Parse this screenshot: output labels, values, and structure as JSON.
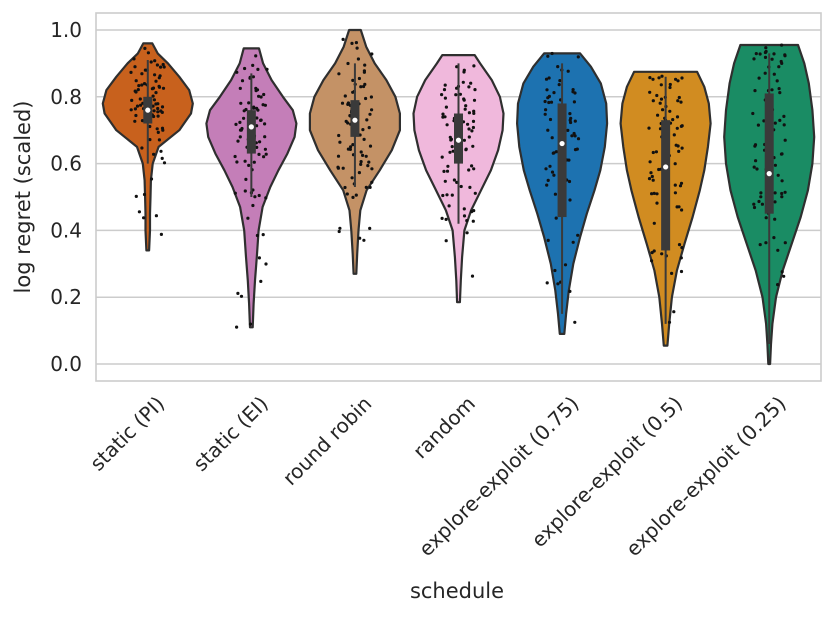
{
  "chart_data": {
    "type": "violin",
    "title": "",
    "xlabel": "schedule",
    "ylabel": "log regret (scaled)",
    "ylim": [
      -0.05,
      1.05
    ],
    "yticks": [
      "0.0",
      "0.2",
      "0.4",
      "0.6",
      "0.8",
      "1.0"
    ],
    "grid": "horizontal",
    "overlay": "jittered individual points (black dots) with inner box-and-whisker",
    "categories": [
      "static (PI)",
      "static (EI)",
      "round robin",
      "random",
      "explore-exploit (0.75)",
      "explore-exploit (0.5)",
      "explore-exploit (0.25)"
    ],
    "series": [
      {
        "category": "static (PI)",
        "color": "#c8611d",
        "min": 0.34,
        "q1": 0.72,
        "median": 0.76,
        "q3": 0.8,
        "max": 0.96,
        "whisker_low": 0.6,
        "whisker_high": 0.91,
        "density": [
          [
            0.34,
            0.03
          ],
          [
            0.4,
            0.05
          ],
          [
            0.45,
            0.05
          ],
          [
            0.5,
            0.06
          ],
          [
            0.55,
            0.07
          ],
          [
            0.6,
            0.11
          ],
          [
            0.65,
            0.24
          ],
          [
            0.7,
            0.7
          ],
          [
            0.75,
            0.96
          ],
          [
            0.78,
            1.0
          ],
          [
            0.82,
            0.92
          ],
          [
            0.86,
            0.7
          ],
          [
            0.9,
            0.45
          ],
          [
            0.93,
            0.22
          ],
          [
            0.96,
            0.1
          ]
        ]
      },
      {
        "category": "static (EI)",
        "color": "#c47eb8",
        "min": 0.11,
        "q1": 0.63,
        "median": 0.71,
        "q3": 0.76,
        "max": 0.945,
        "whisker_low": 0.5,
        "whisker_high": 0.87,
        "density": [
          [
            0.11,
            0.03
          ],
          [
            0.18,
            0.05
          ],
          [
            0.25,
            0.08
          ],
          [
            0.32,
            0.12
          ],
          [
            0.4,
            0.16
          ],
          [
            0.47,
            0.25
          ],
          [
            0.53,
            0.42
          ],
          [
            0.58,
            0.6
          ],
          [
            0.63,
            0.8
          ],
          [
            0.68,
            0.96
          ],
          [
            0.72,
            1.0
          ],
          [
            0.76,
            0.92
          ],
          [
            0.8,
            0.7
          ],
          [
            0.85,
            0.45
          ],
          [
            0.9,
            0.26
          ],
          [
            0.945,
            0.17
          ]
        ]
      },
      {
        "category": "round robin",
        "color": "#c49266",
        "min": 0.27,
        "q1": 0.68,
        "median": 0.73,
        "q3": 0.79,
        "max": 1.0,
        "whisker_low": 0.53,
        "whisker_high": 0.9,
        "density": [
          [
            0.27,
            0.03
          ],
          [
            0.33,
            0.05
          ],
          [
            0.4,
            0.08
          ],
          [
            0.46,
            0.12
          ],
          [
            0.52,
            0.26
          ],
          [
            0.58,
            0.55
          ],
          [
            0.64,
            0.82
          ],
          [
            0.7,
            1.0
          ],
          [
            0.75,
            1.0
          ],
          [
            0.8,
            0.9
          ],
          [
            0.85,
            0.7
          ],
          [
            0.9,
            0.44
          ],
          [
            0.95,
            0.25
          ],
          [
            1.0,
            0.13
          ]
        ]
      },
      {
        "category": "random",
        "color": "#f0b8dc",
        "min": 0.185,
        "q1": 0.6,
        "median": 0.67,
        "q3": 0.75,
        "max": 0.925,
        "whisker_low": 0.42,
        "whisker_high": 0.9,
        "density": [
          [
            0.185,
            0.03
          ],
          [
            0.25,
            0.05
          ],
          [
            0.32,
            0.08
          ],
          [
            0.4,
            0.13
          ],
          [
            0.46,
            0.28
          ],
          [
            0.52,
            0.5
          ],
          [
            0.58,
            0.72
          ],
          [
            0.64,
            0.88
          ],
          [
            0.7,
            0.98
          ],
          [
            0.75,
            1.0
          ],
          [
            0.8,
            0.92
          ],
          [
            0.85,
            0.74
          ],
          [
            0.9,
            0.48
          ],
          [
            0.925,
            0.36
          ]
        ]
      },
      {
        "category": "explore-exploit (0.75)",
        "color": "#1d72b0",
        "min": 0.09,
        "q1": 0.44,
        "median": 0.66,
        "q3": 0.78,
        "max": 0.93,
        "whisker_low": 0.15,
        "whisker_high": 0.9,
        "density": [
          [
            0.09,
            0.05
          ],
          [
            0.15,
            0.09
          ],
          [
            0.22,
            0.15
          ],
          [
            0.3,
            0.25
          ],
          [
            0.38,
            0.4
          ],
          [
            0.45,
            0.55
          ],
          [
            0.52,
            0.72
          ],
          [
            0.58,
            0.85
          ],
          [
            0.65,
            0.95
          ],
          [
            0.72,
            1.0
          ],
          [
            0.78,
            0.98
          ],
          [
            0.84,
            0.86
          ],
          [
            0.89,
            0.64
          ],
          [
            0.93,
            0.4
          ]
        ]
      },
      {
        "category": "explore-exploit (0.5)",
        "color": "#d18c21",
        "min": 0.055,
        "q1": 0.34,
        "median": 0.59,
        "q3": 0.73,
        "max": 0.875,
        "whisker_low": 0.12,
        "whisker_high": 0.86,
        "density": [
          [
            0.055,
            0.04
          ],
          [
            0.12,
            0.08
          ],
          [
            0.2,
            0.14
          ],
          [
            0.28,
            0.25
          ],
          [
            0.36,
            0.42
          ],
          [
            0.44,
            0.6
          ],
          [
            0.52,
            0.76
          ],
          [
            0.58,
            0.86
          ],
          [
            0.65,
            0.94
          ],
          [
            0.72,
            1.0
          ],
          [
            0.78,
            0.96
          ],
          [
            0.83,
            0.86
          ],
          [
            0.875,
            0.7
          ]
        ]
      },
      {
        "category": "explore-exploit (0.25)",
        "color": "#1a8c64",
        "min": 0.0,
        "q1": 0.45,
        "median": 0.57,
        "q3": 0.81,
        "max": 0.955,
        "whisker_low": 0.06,
        "whisker_high": 0.93,
        "density": [
          [
            0.0,
            0.02
          ],
          [
            0.06,
            0.04
          ],
          [
            0.12,
            0.07
          ],
          [
            0.2,
            0.15
          ],
          [
            0.28,
            0.3
          ],
          [
            0.36,
            0.5
          ],
          [
            0.44,
            0.7
          ],
          [
            0.52,
            0.86
          ],
          [
            0.6,
            0.96
          ],
          [
            0.68,
            1.0
          ],
          [
            0.76,
            0.96
          ],
          [
            0.84,
            0.88
          ],
          [
            0.9,
            0.78
          ],
          [
            0.955,
            0.64
          ]
        ]
      }
    ]
  }
}
